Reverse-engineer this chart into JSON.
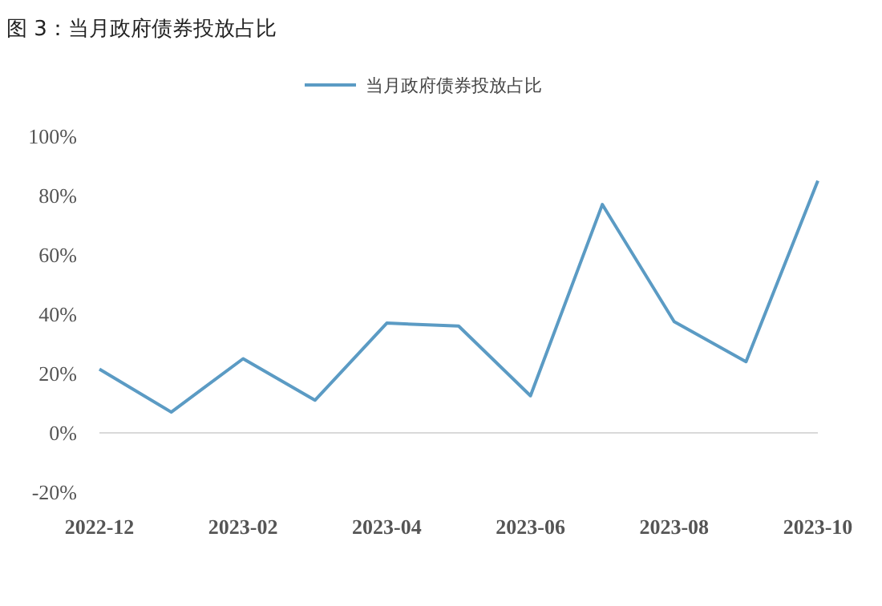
{
  "chart_data": {
    "type": "line",
    "title": "图 3：当月政府债券投放占比",
    "categories": [
      "2022-12",
      null,
      "2023-02",
      null,
      "2023-04",
      null,
      "2023-06",
      null,
      "2023-08",
      null,
      "2023-10"
    ],
    "series": [
      {
        "name": "当月政府债券投放占比",
        "color": "#5b9bc4",
        "values": [
          21.5,
          7,
          25,
          11,
          37,
          36,
          12.5,
          77,
          37.5,
          24,
          85
        ]
      }
    ],
    "ylim": [
      -20,
      100
    ],
    "yticks": [
      {
        "value": -20,
        "label": "-20%"
      },
      {
        "value": 0,
        "label": "0%"
      },
      {
        "value": 20,
        "label": "20%"
      },
      {
        "value": 40,
        "label": "40%"
      },
      {
        "value": 60,
        "label": "60%"
      },
      {
        "value": 80,
        "label": "80%"
      },
      {
        "value": 100,
        "label": "100%"
      }
    ],
    "legend": "top",
    "marker": "none",
    "line_style": "solid"
  }
}
